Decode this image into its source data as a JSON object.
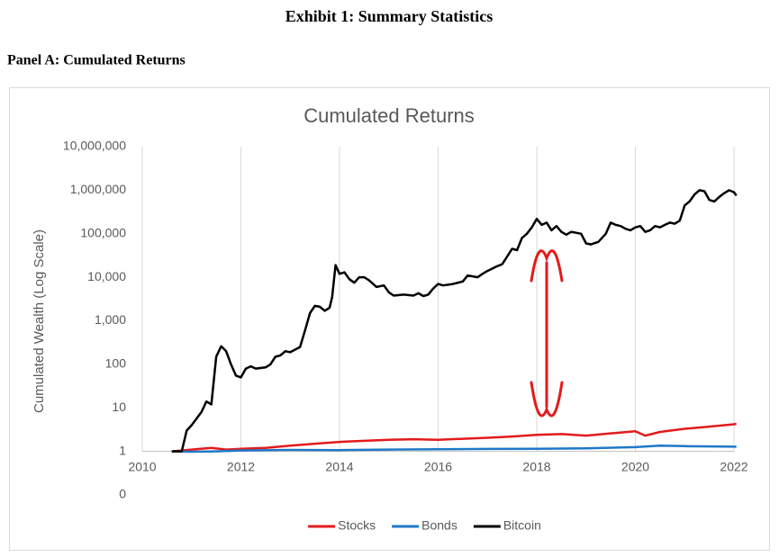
{
  "header": {
    "title": "Exhibit 1: Summary Statistics",
    "panel": "Panel A: Cumulated Returns"
  },
  "chart_data": {
    "type": "line",
    "title": "Cumulated Returns",
    "ylabel": "Cumulated Wealth (Log Scale)",
    "log_scale": "y",
    "grid": "x",
    "legend": "bottom",
    "x_axis_crosses": 1,
    "xlim": [
      2010,
      2022
    ],
    "xticks": [
      2010,
      2012,
      2014,
      2016,
      2018,
      2020,
      2022
    ],
    "ylim": [
      0.1,
      10000000
    ],
    "yticks": [
      {
        "value": 0.1,
        "label": "0"
      },
      1,
      10,
      100,
      {
        "value": 1000,
        "label": "1,000"
      },
      {
        "value": 10000,
        "label": "10,000"
      },
      {
        "value": 100000,
        "label": "100,000"
      },
      {
        "value": 1000000,
        "label": "1,000,000"
      },
      {
        "value": 10000000,
        "label": "10,000,000"
      }
    ],
    "series": [
      {
        "name": "Stocks",
        "color": "#e31a1c",
        "x": [
          2010.6,
          2011.0,
          2011.4,
          2011.7,
          2012.0,
          2012.5,
          2013.0,
          2013.5,
          2014.0,
          2014.5,
          2015.0,
          2015.5,
          2016.0,
          2016.5,
          2017.0,
          2017.5,
          2018.0,
          2018.5,
          2019.0,
          2019.5,
          2020.0,
          2020.2,
          2020.5,
          2021.0,
          2021.5,
          2022.0,
          2022.05
        ],
        "values": [
          1,
          1.1,
          1.2,
          1.1,
          1.15,
          1.2,
          1.35,
          1.5,
          1.65,
          1.75,
          1.85,
          1.9,
          1.85,
          1.95,
          2.05,
          2.2,
          2.4,
          2.5,
          2.3,
          2.6,
          2.9,
          2.3,
          2.8,
          3.3,
          3.7,
          4.2,
          4.3
        ]
      },
      {
        "name": "Bonds",
        "color": "#1f78c8",
        "x": [
          2010.6,
          2011.0,
          2011.5,
          2012.0,
          2013.0,
          2014.0,
          2015.0,
          2016.0,
          2017.0,
          2018.0,
          2019.0,
          2020.0,
          2020.5,
          2021.0,
          2022.0,
          2022.05
        ],
        "values": [
          1,
          0.98,
          1.0,
          1.05,
          1.08,
          1.07,
          1.1,
          1.12,
          1.14,
          1.15,
          1.17,
          1.25,
          1.35,
          1.32,
          1.28,
          1.28
        ]
      },
      {
        "name": "Bitcoin",
        "color": "#000000",
        "x": [
          2010.6,
          2010.8,
          2010.9,
          2011.0,
          2011.2,
          2011.3,
          2011.4,
          2011.5,
          2011.6,
          2011.7,
          2011.8,
          2011.9,
          2012.0,
          2012.1,
          2012.2,
          2012.3,
          2012.5,
          2012.6,
          2012.7,
          2012.8,
          2012.9,
          2013.0,
          2013.2,
          2013.3,
          2013.4,
          2013.5,
          2013.6,
          2013.7,
          2013.8,
          2013.85,
          2013.92,
          2014.0,
          2014.1,
          2014.2,
          2014.3,
          2014.4,
          2014.5,
          2014.6,
          2014.75,
          2014.9,
          2015.0,
          2015.1,
          2015.3,
          2015.5,
          2015.6,
          2015.7,
          2015.8,
          2015.9,
          2016.0,
          2016.1,
          2016.3,
          2016.5,
          2016.6,
          2016.8,
          2016.9,
          2017.0,
          2017.2,
          2017.3,
          2017.4,
          2017.5,
          2017.6,
          2017.7,
          2017.8,
          2017.9,
          2018.0,
          2018.1,
          2018.2,
          2018.3,
          2018.4,
          2018.5,
          2018.6,
          2018.7,
          2018.8,
          2018.9,
          2019.0,
          2019.1,
          2019.25,
          2019.4,
          2019.5,
          2019.6,
          2019.7,
          2019.8,
          2019.9,
          2020.0,
          2020.1,
          2020.2,
          2020.3,
          2020.4,
          2020.5,
          2020.6,
          2020.7,
          2020.8,
          2020.9,
          2021.0,
          2021.1,
          2021.2,
          2021.3,
          2021.4,
          2021.5,
          2021.6,
          2021.7,
          2021.8,
          2021.9,
          2022.0,
          2022.05
        ],
        "values": [
          1,
          1,
          3,
          4,
          8,
          14,
          12,
          150,
          260,
          200,
          100,
          55,
          50,
          80,
          90,
          80,
          85,
          100,
          150,
          160,
          200,
          190,
          250,
          600,
          1500,
          2200,
          2100,
          1700,
          2000,
          3500,
          19000,
          12000,
          13000,
          9000,
          7500,
          10000,
          10000,
          8500,
          6000,
          6500,
          4500,
          3800,
          4000,
          3800,
          4300,
          3700,
          4000,
          5500,
          7000,
          6500,
          7000,
          8000,
          11000,
          10000,
          12000,
          14000,
          18000,
          20000,
          30000,
          45000,
          42000,
          80000,
          100000,
          140000,
          220000,
          160000,
          180000,
          120000,
          150000,
          110000,
          95000,
          110000,
          105000,
          100000,
          60000,
          57000,
          65000,
          100000,
          180000,
          160000,
          150000,
          130000,
          120000,
          140000,
          150000,
          110000,
          120000,
          150000,
          140000,
          160000,
          180000,
          170000,
          200000,
          450000,
          550000,
          800000,
          1000000,
          950000,
          600000,
          550000,
          700000,
          850000,
          1000000,
          900000,
          750000
        ]
      }
    ]
  }
}
